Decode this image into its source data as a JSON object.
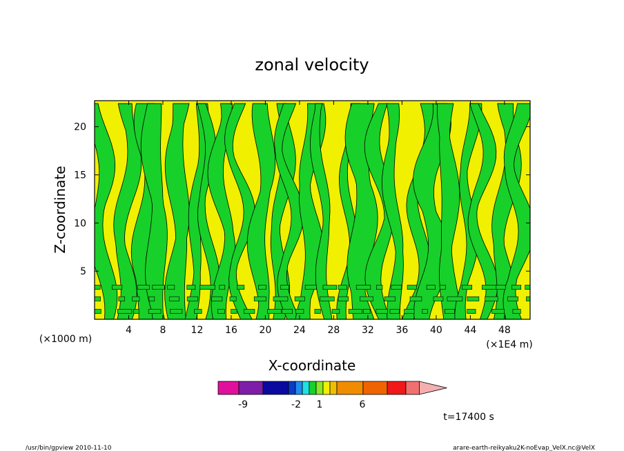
{
  "chart_data": {
    "type": "heatmap",
    "title": "zonal velocity",
    "xlabel": "X-coordinate",
    "ylabel": "Z-coordinate",
    "x_unit": "(×1E4 m)",
    "y_unit": "(×1000 m)",
    "xlim": [
      0,
      51
    ],
    "ylim": [
      0,
      22.7
    ],
    "x_ticks": [
      4,
      8,
      12,
      16,
      20,
      24,
      28,
      32,
      36,
      40,
      44,
      48
    ],
    "y_ticks": [
      5,
      10,
      15,
      20
    ],
    "colorbar": {
      "colors": [
        "#e0109c",
        "#7e1ea8",
        "#0a0aa0",
        "#0a3cc8",
        "#1e8cf0",
        "#20e0e0",
        "#18d02a",
        "#8ae628",
        "#f0f000",
        "#f0c000",
        "#f08c00",
        "#f06400",
        "#f01818",
        "#f07070",
        "#f4b0b0"
      ],
      "tick_labels": [
        "-9",
        "-2",
        "1",
        "6"
      ]
    },
    "dominant_colors": {
      "positive": "#f0f000",
      "negative": "#18d02a"
    },
    "time_label": "t=17400 s"
  },
  "footer": {
    "left": "/usr/bin/gpview  2010-11-10",
    "right": "arare-earth-reikyaku2K-noEvap_VelX.nc@VelX"
  }
}
